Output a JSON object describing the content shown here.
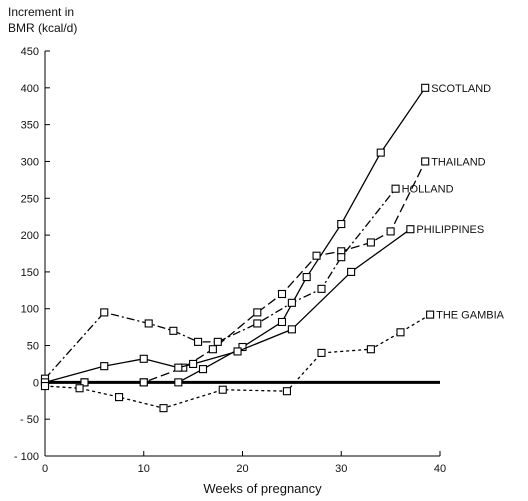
{
  "chart_data": {
    "type": "line",
    "title": "",
    "ylabel_lines": [
      "Increment in",
      "BMR (kcal/d)"
    ],
    "xlabel": "Weeks of pregnancy",
    "xlim": [
      0,
      40
    ],
    "ylim": [
      -100,
      450
    ],
    "x_ticks": [
      0,
      10,
      20,
      30,
      40
    ],
    "x_tick_labels": [
      "0",
      "10",
      "20",
      "30",
      "40"
    ],
    "y_ticks": [
      -100,
      -50,
      0,
      50,
      100,
      150,
      200,
      250,
      300,
      350,
      400,
      450
    ],
    "y_tick_labels": [
      "- 100",
      "- 50",
      "0",
      "50",
      "100",
      "150",
      "200",
      "250",
      "300",
      "350",
      "400",
      "450"
    ],
    "zero_line": true,
    "series": [
      {
        "name": "SCOTLAND",
        "dash": "solid",
        "points": [
          [
            0,
            0
          ],
          [
            4,
            0
          ],
          [
            10,
            0
          ],
          [
            13.5,
            0
          ],
          [
            16,
            18
          ],
          [
            20,
            48
          ],
          [
            24,
            82
          ],
          [
            26.5,
            143
          ],
          [
            30,
            215
          ],
          [
            34,
            312
          ],
          [
            38.5,
            400
          ]
        ]
      },
      {
        "name": "THAILAND",
        "dash": "dashed",
        "points": [
          [
            0,
            0
          ],
          [
            4,
            0
          ],
          [
            10,
            0
          ],
          [
            14,
            20
          ],
          [
            17,
            45
          ],
          [
            21.5,
            95
          ],
          [
            24,
            120
          ],
          [
            27.5,
            172
          ],
          [
            30,
            178
          ],
          [
            33,
            190
          ],
          [
            35,
            205
          ],
          [
            38.5,
            300
          ]
        ]
      },
      {
        "name": "HOLLAND",
        "dash": "dashdot",
        "points": [
          [
            0,
            5
          ],
          [
            6,
            95
          ],
          [
            10.5,
            80
          ],
          [
            13,
            70
          ],
          [
            15.5,
            55
          ],
          [
            17.5,
            55
          ],
          [
            21.5,
            80
          ],
          [
            25,
            108
          ],
          [
            28,
            127
          ],
          [
            30,
            170
          ],
          [
            35.5,
            263
          ]
        ]
      },
      {
        "name": "PHILIPPINES",
        "dash": "solid",
        "points": [
          [
            0,
            0
          ],
          [
            6,
            22
          ],
          [
            10,
            32
          ],
          [
            13.5,
            20
          ],
          [
            15,
            25
          ],
          [
            19.5,
            42
          ],
          [
            25,
            72
          ],
          [
            31,
            150
          ],
          [
            37,
            208
          ]
        ]
      },
      {
        "name": "THE GAMBIA",
        "dash": "dotted",
        "points": [
          [
            0,
            -5
          ],
          [
            3.5,
            -8
          ],
          [
            7.5,
            -20
          ],
          [
            12,
            -35
          ],
          [
            18,
            -10
          ],
          [
            24.5,
            -12
          ],
          [
            28,
            40
          ],
          [
            33,
            45
          ],
          [
            36,
            68
          ],
          [
            39,
            92
          ]
        ]
      }
    ]
  }
}
